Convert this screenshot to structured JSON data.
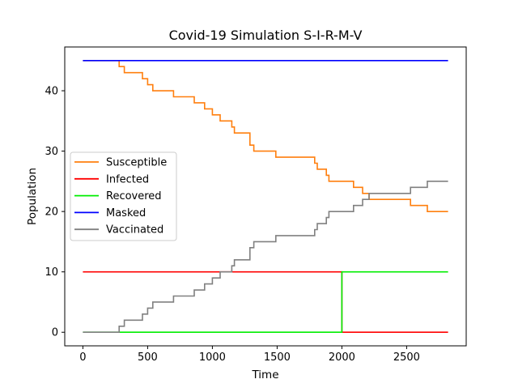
{
  "chart_data": {
    "type": "line",
    "title": "Covid-19 Simulation S-I-R-M-V",
    "xlabel": "Time",
    "ylabel": "Population",
    "xlim": [
      -140,
      2960
    ],
    "ylim": [
      -2.25,
      47.25
    ],
    "x_ticks": [
      0,
      500,
      1000,
      1500,
      2000,
      2500
    ],
    "y_ticks": [
      0,
      10,
      20,
      30,
      40
    ],
    "step": true,
    "grid": false,
    "legend_position": "center-left",
    "series": [
      {
        "name": "Susceptible",
        "color": "#ff7f0e",
        "x": [
          0,
          280,
          320,
          460,
          500,
          540,
          700,
          860,
          940,
          1000,
          1060,
          1150,
          1170,
          1290,
          1320,
          1350,
          1490,
          1790,
          1810,
          1880,
          1900,
          2090,
          2160,
          2210,
          2530,
          2660,
          2820
        ],
        "y": [
          45,
          44,
          43,
          42,
          41,
          40,
          39,
          38,
          37,
          36,
          35,
          34,
          33,
          31,
          30,
          30,
          29,
          28,
          27,
          26,
          25,
          24,
          23,
          22,
          21,
          20,
          20
        ]
      },
      {
        "name": "Infected",
        "color": "#ff0000",
        "x": [
          0,
          1995,
          2000,
          2820
        ],
        "y": [
          10,
          10,
          0,
          0
        ]
      },
      {
        "name": "Recovered",
        "color": "#00ee00",
        "x": [
          0,
          1995,
          2000,
          2820
        ],
        "y": [
          0,
          0,
          10,
          10
        ]
      },
      {
        "name": "Masked",
        "color": "#0000ff",
        "x": [
          0,
          2820
        ],
        "y": [
          45,
          45
        ]
      },
      {
        "name": "Vaccinated",
        "color": "#808080",
        "x": [
          0,
          280,
          320,
          460,
          500,
          540,
          700,
          860,
          940,
          1000,
          1060,
          1150,
          1170,
          1290,
          1320,
          1350,
          1490,
          1790,
          1810,
          1880,
          1900,
          2090,
          2160,
          2210,
          2530,
          2660,
          2820
        ],
        "y": [
          0,
          1,
          2,
          3,
          4,
          5,
          6,
          7,
          8,
          9,
          10,
          11,
          12,
          14,
          15,
          15,
          16,
          17,
          18,
          19,
          20,
          21,
          22,
          23,
          24,
          25,
          25
        ]
      }
    ]
  }
}
